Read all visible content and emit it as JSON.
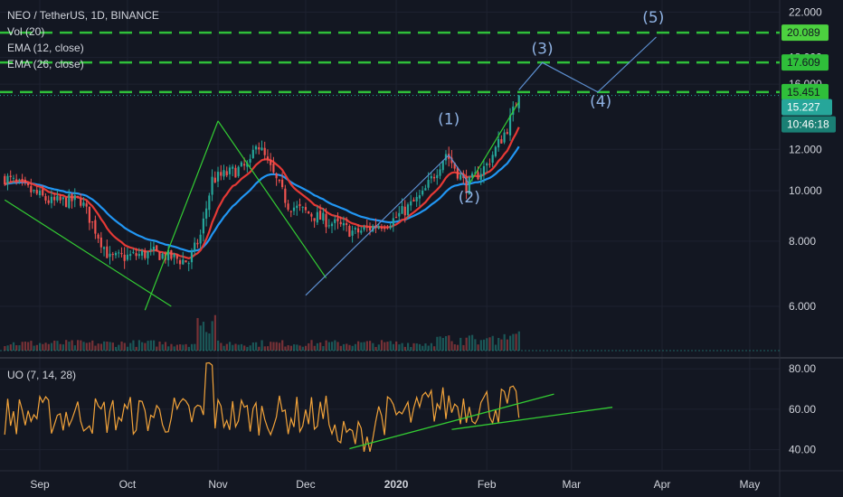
{
  "header": {
    "symbol_line": "NEO / TetherUS, 1D, BINANCE",
    "indicators": [
      "Vol (20)",
      "EMA (12, close)",
      "EMA (26, close)"
    ],
    "uo_label": "UO (7, 14, 28)"
  },
  "colors": {
    "background": "#131722",
    "grid": "#1e2230",
    "up_candle": "#26a69a",
    "down_candle": "#ef5350",
    "ema_fast": "#e53935",
    "ema_slow": "#2196f3",
    "trendline": "#33cc33",
    "level_line": "#2fbf3a",
    "wave_line": "#5d8fd0",
    "uo_line": "#f2a33a",
    "price_tag": "#26a69a"
  },
  "chart_data": [
    {
      "type": "candlestick",
      "title": "NEO / TetherUS, 1D, BINANCE",
      "x_ticks": [
        "Sep",
        "Oct",
        "Nov",
        "Dec",
        "2020",
        "Feb",
        "Mar",
        "Apr",
        "May"
      ],
      "y_ticks": [
        "22.000",
        "18.000",
        "16.000",
        "12.000",
        "10.000",
        "8.000",
        "6.000"
      ],
      "ylim": [
        4.8,
        23.2
      ],
      "scale": "log",
      "horizontal_levels": [
        {
          "value": 20.089,
          "label": "20.089"
        },
        {
          "value": 17.609,
          "label": "17.609"
        },
        {
          "value": 15.451,
          "label": "15.451"
        }
      ],
      "last_price": {
        "value": 15.227,
        "label": "15.227"
      },
      "countdown": "10:46:18",
      "anchors": [
        {
          "date": "Aug 20",
          "close": 10.6
        },
        {
          "date": "Sep 5",
          "close": 9.5
        },
        {
          "date": "Sep 15",
          "close": 9.6
        },
        {
          "date": "Sep 25",
          "close": 7.4
        },
        {
          "date": "Oct 10",
          "close": 7.6
        },
        {
          "date": "Oct 22",
          "close": 7.3
        },
        {
          "date": "Oct 26",
          "close": 8.2
        },
        {
          "date": "Oct 30",
          "close": 10.5
        },
        {
          "date": "Nov 12",
          "close": 11.2
        },
        {
          "date": "Nov 14",
          "close": 12.5
        },
        {
          "date": "Nov 25",
          "close": 9.4
        },
        {
          "date": "Dec 5",
          "close": 8.9
        },
        {
          "date": "Dec 18",
          "close": 8.3
        },
        {
          "date": "Dec 31",
          "close": 8.8
        },
        {
          "date": "Jan 10",
          "close": 9.8
        },
        {
          "date": "Jan 18",
          "close": 11.8
        },
        {
          "date": "Jan 25",
          "close": 10.2
        },
        {
          "date": "Feb 1",
          "close": 11.2
        },
        {
          "date": "Feb 8",
          "close": 13.2
        },
        {
          "date": "Feb 12",
          "close": 15.2
        }
      ],
      "wave_labels": [
        {
          "label": "(1)",
          "date": "Jan 19",
          "value": 13.4
        },
        {
          "label": "(2)",
          "date": "Jan 26",
          "value": 9.5
        },
        {
          "label": "(3)",
          "date": "Feb 20",
          "value": 18.3
        },
        {
          "label": "(4)",
          "date": "Mar 11",
          "value": 14.5
        },
        {
          "label": "(5)",
          "date": "Mar 29",
          "value": 21.0
        }
      ],
      "wave_path": [
        {
          "date": "Feb 12",
          "value": 15.6
        },
        {
          "date": "Feb 20",
          "value": 17.6
        },
        {
          "date": "Mar 10",
          "value": 15.45
        },
        {
          "date": "Mar 30",
          "value": 19.7
        }
      ],
      "trendlines": [
        [
          {
            "date": "Aug 20",
            "value": 9.6
          },
          {
            "date": "Oct 16",
            "value": 6.0
          }
        ],
        [
          {
            "date": "Oct 7",
            "value": 5.9
          },
          {
            "date": "Nov 1",
            "value": 13.6
          }
        ],
        [
          {
            "date": "Nov 1",
            "value": 13.6
          },
          {
            "date": "Dec 8",
            "value": 6.8
          }
        ],
        [
          {
            "date": "Dec 1",
            "value": 6.3
          },
          {
            "date": "Jan 19",
            "value": 11.7
          }
        ],
        [
          {
            "date": "Jan 19",
            "value": 11.7
          },
          {
            "date": "Jan 26",
            "value": 10.3
          }
        ],
        [
          {
            "date": "Jan 26",
            "value": 10.3
          },
          {
            "date": "Feb 12",
            "value": 14.8
          }
        ]
      ]
    },
    {
      "type": "line",
      "title": "UO (7, 14, 28)",
      "y_ticks": [
        "80.00",
        "60.00",
        "40.00"
      ],
      "ylim": [
        30,
        85
      ],
      "trendlines": [
        [
          {
            "date": "Dec 16",
            "value": 40.5
          },
          {
            "date": "Feb 24",
            "value": 67.5
          }
        ],
        [
          {
            "date": "Jan 20",
            "value": 50.0
          },
          {
            "date": "Mar 15",
            "value": 61.0
          }
        ]
      ]
    }
  ]
}
